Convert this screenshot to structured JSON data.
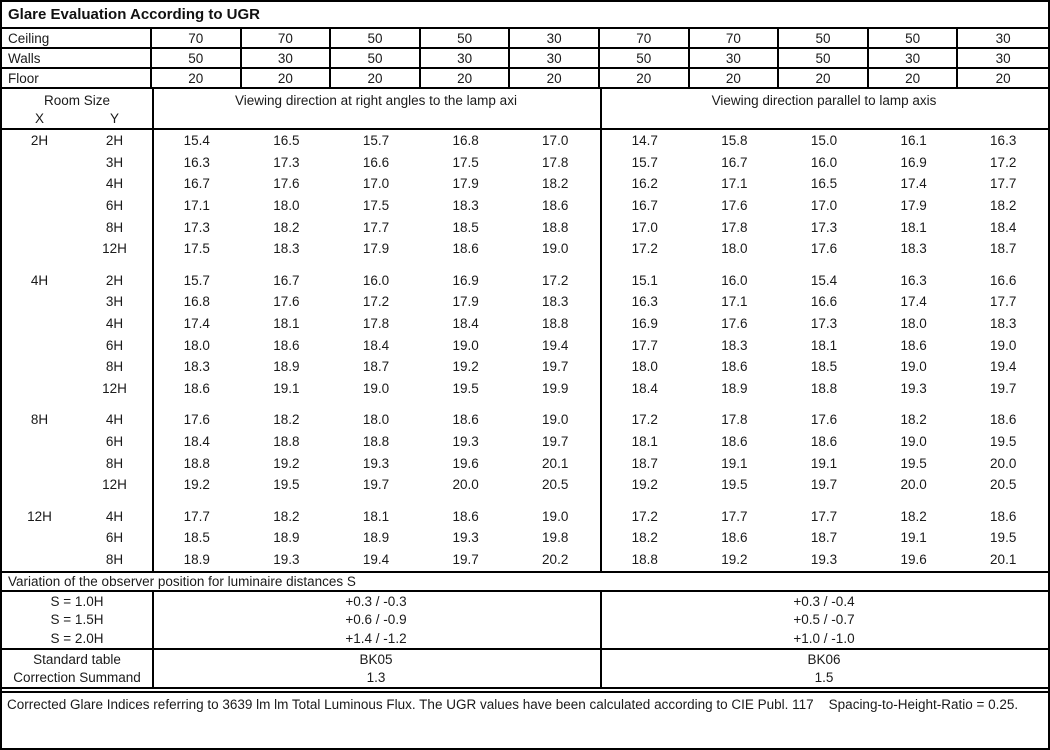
{
  "title": "Glare Evaluation According to UGR",
  "surface_rows": [
    {
      "label": "Ceiling",
      "values": [
        "70",
        "70",
        "50",
        "50",
        "30",
        "70",
        "70",
        "50",
        "50",
        "30"
      ]
    },
    {
      "label": "Walls",
      "values": [
        "50",
        "30",
        "50",
        "30",
        "30",
        "50",
        "30",
        "50",
        "30",
        "30"
      ]
    },
    {
      "label": "Floor",
      "values": [
        "20",
        "20",
        "20",
        "20",
        "20",
        "20",
        "20",
        "20",
        "20",
        "20"
      ]
    }
  ],
  "header": {
    "room_size": "Room Size",
    "x": "X",
    "y": "Y",
    "left_direction": "Viewing direction at right angles to the lamp axi",
    "right_direction": "Viewing direction parallel to lamp axis"
  },
  "ugr_blocks": [
    {
      "x": "2H",
      "rows": [
        {
          "y": "2H",
          "left": [
            "15.4",
            "16.5",
            "15.7",
            "16.8",
            "17.0"
          ],
          "right": [
            "14.7",
            "15.8",
            "15.0",
            "16.1",
            "16.3"
          ]
        },
        {
          "y": "3H",
          "left": [
            "16.3",
            "17.3",
            "16.6",
            "17.5",
            "17.8"
          ],
          "right": [
            "15.7",
            "16.7",
            "16.0",
            "16.9",
            "17.2"
          ]
        },
        {
          "y": "4H",
          "left": [
            "16.7",
            "17.6",
            "17.0",
            "17.9",
            "18.2"
          ],
          "right": [
            "16.2",
            "17.1",
            "16.5",
            "17.4",
            "17.7"
          ]
        },
        {
          "y": "6H",
          "left": [
            "17.1",
            "18.0",
            "17.5",
            "18.3",
            "18.6"
          ],
          "right": [
            "16.7",
            "17.6",
            "17.0",
            "17.9",
            "18.2"
          ]
        },
        {
          "y": "8H",
          "left": [
            "17.3",
            "18.2",
            "17.7",
            "18.5",
            "18.8"
          ],
          "right": [
            "17.0",
            "17.8",
            "17.3",
            "18.1",
            "18.4"
          ]
        },
        {
          "y": "12H",
          "left": [
            "17.5",
            "18.3",
            "17.9",
            "18.6",
            "19.0"
          ],
          "right": [
            "17.2",
            "18.0",
            "17.6",
            "18.3",
            "18.7"
          ]
        }
      ]
    },
    {
      "x": "4H",
      "rows": [
        {
          "y": "2H",
          "left": [
            "15.7",
            "16.7",
            "16.0",
            "16.9",
            "17.2"
          ],
          "right": [
            "15.1",
            "16.0",
            "15.4",
            "16.3",
            "16.6"
          ]
        },
        {
          "y": "3H",
          "left": [
            "16.8",
            "17.6",
            "17.2",
            "17.9",
            "18.3"
          ],
          "right": [
            "16.3",
            "17.1",
            "16.6",
            "17.4",
            "17.7"
          ]
        },
        {
          "y": "4H",
          "left": [
            "17.4",
            "18.1",
            "17.8",
            "18.4",
            "18.8"
          ],
          "right": [
            "16.9",
            "17.6",
            "17.3",
            "18.0",
            "18.3"
          ]
        },
        {
          "y": "6H",
          "left": [
            "18.0",
            "18.6",
            "18.4",
            "19.0",
            "19.4"
          ],
          "right": [
            "17.7",
            "18.3",
            "18.1",
            "18.6",
            "19.0"
          ]
        },
        {
          "y": "8H",
          "left": [
            "18.3",
            "18.9",
            "18.7",
            "19.2",
            "19.7"
          ],
          "right": [
            "18.0",
            "18.6",
            "18.5",
            "19.0",
            "19.4"
          ]
        },
        {
          "y": "12H",
          "left": [
            "18.6",
            "19.1",
            "19.0",
            "19.5",
            "19.9"
          ],
          "right": [
            "18.4",
            "18.9",
            "18.8",
            "19.3",
            "19.7"
          ]
        }
      ]
    },
    {
      "x": "8H",
      "rows": [
        {
          "y": "4H",
          "left": [
            "17.6",
            "18.2",
            "18.0",
            "18.6",
            "19.0"
          ],
          "right": [
            "17.2",
            "17.8",
            "17.6",
            "18.2",
            "18.6"
          ]
        },
        {
          "y": "6H",
          "left": [
            "18.4",
            "18.8",
            "18.8",
            "19.3",
            "19.7"
          ],
          "right": [
            "18.1",
            "18.6",
            "18.6",
            "19.0",
            "19.5"
          ]
        },
        {
          "y": "8H",
          "left": [
            "18.8",
            "19.2",
            "19.3",
            "19.6",
            "20.1"
          ],
          "right": [
            "18.7",
            "19.1",
            "19.1",
            "19.5",
            "20.0"
          ]
        },
        {
          "y": "12H",
          "left": [
            "19.2",
            "19.5",
            "19.7",
            "20.0",
            "20.5"
          ],
          "right": [
            "19.2",
            "19.5",
            "19.7",
            "20.0",
            "20.5"
          ]
        }
      ]
    },
    {
      "x": "12H",
      "rows": [
        {
          "y": "4H",
          "left": [
            "17.7",
            "18.2",
            "18.1",
            "18.6",
            "19.0"
          ],
          "right": [
            "17.2",
            "17.7",
            "17.7",
            "18.2",
            "18.6"
          ]
        },
        {
          "y": "6H",
          "left": [
            "18.5",
            "18.9",
            "18.9",
            "19.3",
            "19.8"
          ],
          "right": [
            "18.2",
            "18.6",
            "18.7",
            "19.1",
            "19.5"
          ]
        },
        {
          "y": "8H",
          "left": [
            "18.9",
            "19.3",
            "19.4",
            "19.7",
            "20.2"
          ],
          "right": [
            "18.8",
            "19.2",
            "19.3",
            "19.6",
            "20.1"
          ]
        }
      ]
    }
  ],
  "variation": {
    "section_label": "Variation of the observer position for luminaire distances S",
    "rows": [
      {
        "label": "S = 1.0H",
        "left": "+0.3 / -0.3",
        "right": "+0.3 / -0.4"
      },
      {
        "label": "S = 1.5H",
        "left": "+0.6 / -0.9",
        "right": "+0.5 / -0.7"
      },
      {
        "label": "S = 2.0H",
        "left": "+1.4 / -1.2",
        "right": "+1.0 / -1.0"
      }
    ]
  },
  "summary_rows": [
    {
      "label": "Standard table",
      "left": "BK05",
      "right": "BK06"
    },
    {
      "label": "Correction Summand",
      "left": "1.3",
      "right": "1.5"
    }
  ],
  "footer": "Corrected Glare Indices referring to 3639 lm lm Total Luminous Flux. The UGR values have been calculated according to CIE Publ. 117    Spacing-to-Height-Ratio = 0.25."
}
